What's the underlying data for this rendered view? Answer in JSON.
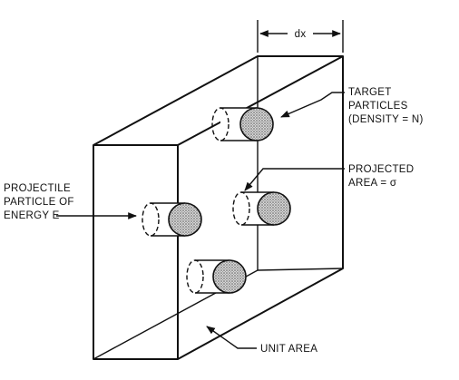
{
  "labels": {
    "dimension": "dx",
    "target_line1": "TARGET",
    "target_line2": "PARTICLES",
    "target_line3": "(DENSITY = N)",
    "projected_line1": "PROJECTED",
    "projected_line2": "AREA = σ",
    "projectile_line1": "PROJECTILE",
    "projectile_line2": "PARTICLE OF",
    "projectile_line3": "ENERGY E",
    "unit_area": "UNIT AREA"
  },
  "colors": {
    "ink": "#111111",
    "background": "#ffffff",
    "particle_fill": "#bdbdbd"
  }
}
